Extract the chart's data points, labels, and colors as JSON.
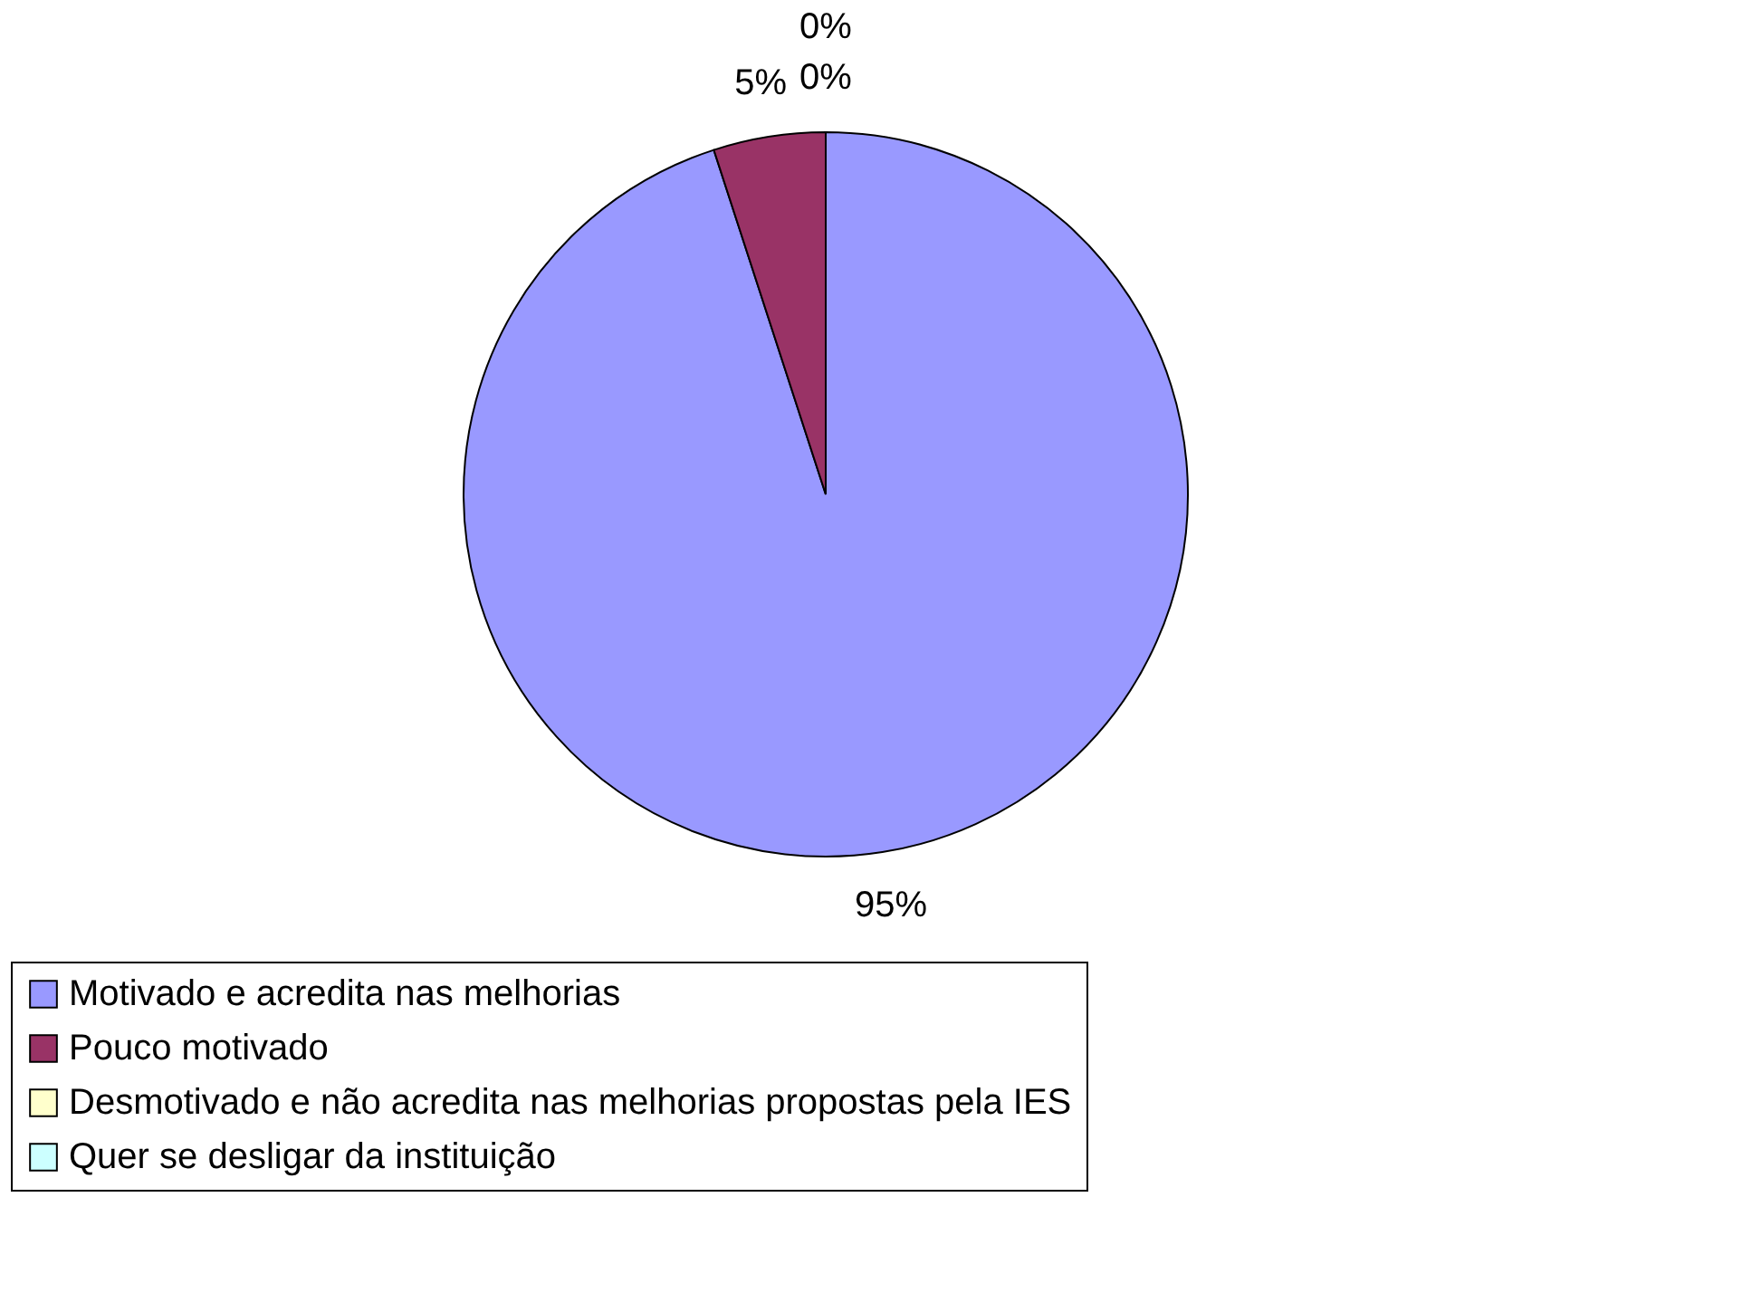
{
  "chart_data": {
    "type": "pie",
    "categories": [
      "Motivado e acredita nas melhorias",
      "Pouco motivado",
      "Desmotivado e não acredita nas melhorias propostas pela IES",
      "Quer se desligar da instituição"
    ],
    "values": [
      95,
      5,
      0,
      0
    ],
    "colors": [
      "#9999ff",
      "#993366",
      "#ffffcc",
      "#ccffff"
    ],
    "value_labels": [
      "95%",
      "5%",
      "0%",
      "0%"
    ],
    "legend": "bottom"
  }
}
